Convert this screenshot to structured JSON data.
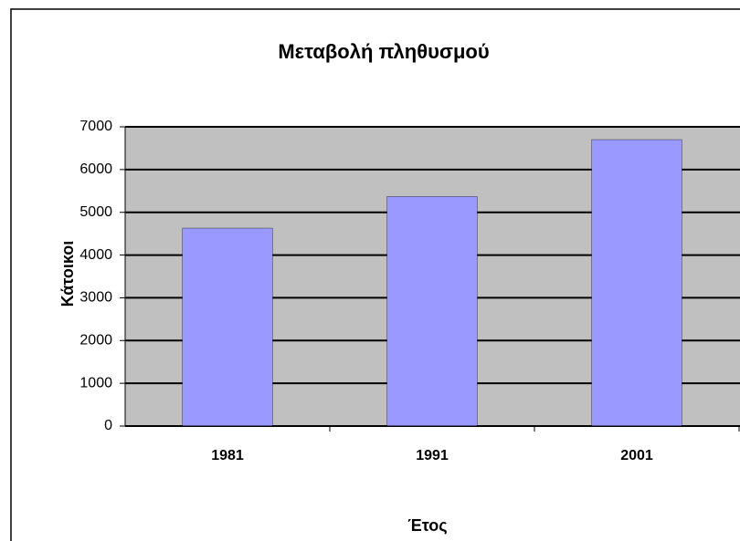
{
  "chart_data": {
    "type": "bar",
    "title": "Μεταβολή πληθυσμού",
    "x_label": "Έτος",
    "y_label": "Κάτοικοι",
    "categories": [
      "1981",
      "1991",
      "2001"
    ],
    "values": [
      4630,
      5370,
      6700
    ],
    "color": "#9999ff",
    "ylim": [
      0,
      7000
    ],
    "yticks": [
      0,
      1000,
      2000,
      3000,
      4000,
      5000,
      6000,
      7000
    ],
    "grid": true
  }
}
